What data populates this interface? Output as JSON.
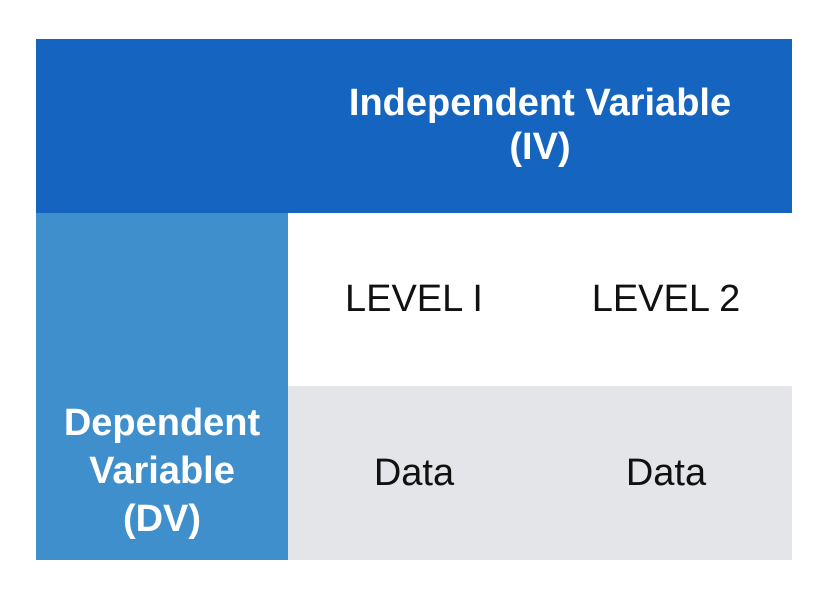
{
  "independent_variable": {
    "line1": "Independent Variable",
    "line2": "(IV)"
  },
  "dependent_variable": {
    "line1": "Dependent",
    "line2": "Variable",
    "line3": "(DV)"
  },
  "levels": [
    "LEVEL I",
    "LEVEL 2"
  ],
  "data_cells": [
    "Data",
    "Data"
  ],
  "colors": {
    "iv_header": "#1565c0",
    "dv_column": "#3e8fcb",
    "data_row": "#e4e5e9"
  }
}
